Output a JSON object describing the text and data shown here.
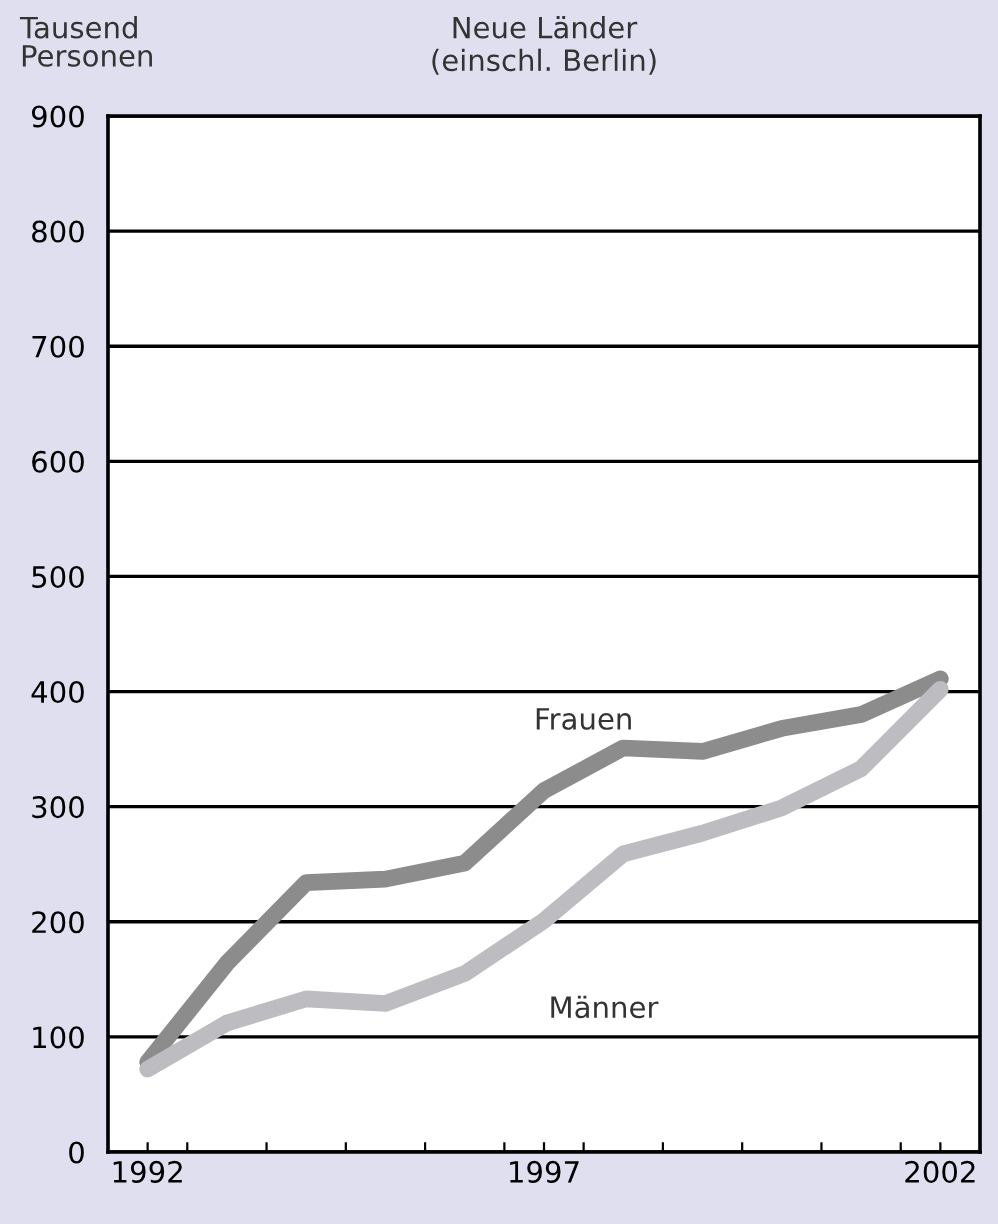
{
  "chart_data": {
    "type": "line",
    "title": "Neue Länder\n(einschl. Berlin)",
    "ylabel": "Tausend\nPersonen",
    "x": [
      1992,
      1993,
      1994,
      1995,
      1996,
      1997,
      1998,
      1999,
      2000,
      2001,
      2002
    ],
    "series": [
      {
        "name": "Frauen",
        "color": "#8c8c8c",
        "values": [
          78,
          164,
          234,
          237,
          251,
          314,
          351,
          348,
          368,
          380,
          411
        ]
      },
      {
        "name": "Männer",
        "color": "#bdbdc1",
        "values": [
          72,
          112,
          133,
          129,
          155,
          201,
          259,
          277,
          299,
          333,
          402
        ]
      }
    ],
    "xlim": [
      1991.5,
      2002.5
    ],
    "xticks": [
      {
        "value": 1991.5,
        "label": null
      },
      {
        "value": 1992,
        "label": "1992"
      },
      {
        "value": 1992.5,
        "label": null
      },
      {
        "value": 1993.5,
        "label": null
      },
      {
        "value": 1994.5,
        "label": null
      },
      {
        "value": 1995.5,
        "label": null
      },
      {
        "value": 1996.5,
        "label": null
      },
      {
        "value": 1997,
        "label": "1997"
      },
      {
        "value": 1997.5,
        "label": null
      },
      {
        "value": 1998.5,
        "label": null
      },
      {
        "value": 1999.5,
        "label": null
      },
      {
        "value": 2000.5,
        "label": null
      },
      {
        "value": 2001.5,
        "label": null
      },
      {
        "value": 2002,
        "label": "2002"
      },
      {
        "value": 2002.5,
        "label": null
      }
    ],
    "ylim": [
      0,
      900
    ],
    "yticks": [
      0,
      100,
      200,
      300,
      400,
      500,
      600,
      700,
      800,
      900
    ],
    "grid": "y",
    "legend": false,
    "marker": "none",
    "line_style": "solid"
  }
}
